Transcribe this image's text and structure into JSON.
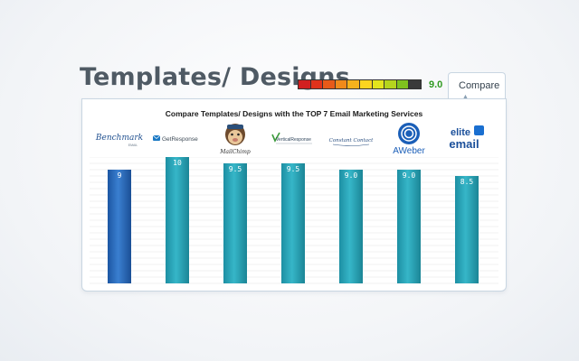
{
  "page": {
    "title": "Templates/ Designs"
  },
  "rating": {
    "score": "9.0",
    "segments": 10,
    "segment_colors": [
      "#d21f1f",
      "#e0321b",
      "#e75a19",
      "#f08a1b",
      "#f6b21c",
      "#fbd51f",
      "#e3e41d",
      "#b5d41d",
      "#7fc21e",
      "#4e9f1c"
    ],
    "filled": 9
  },
  "compare_tab": {
    "label": "Compare",
    "icon": "caret-up-icon"
  },
  "chart_data": {
    "type": "bar",
    "title": "Compare Templates/ Designs with the TOP 7 Email Marketing Services",
    "categories": [
      "Benchmark",
      "GetResponse",
      "MailChimp",
      "VerticalResponse",
      "Constant Contact",
      "AWeber",
      "elite email"
    ],
    "values": [
      9,
      10,
      9.5,
      9.5,
      9.0,
      9.0,
      8.5
    ],
    "value_labels": [
      "9",
      "10",
      "9.5",
      "9.5",
      "9.0",
      "9.0",
      "8.5"
    ],
    "ylim": [
      0,
      10
    ],
    "grid": true,
    "highlight_index": 0,
    "colors": {
      "highlight": "#2a69b8",
      "default": "#2aa3b6",
      "grid": "#e5e5e5"
    }
  },
  "logos": [
    {
      "name": "Benchmark",
      "text": "Benchmark",
      "sub": "EMAIL"
    },
    {
      "name": "GetResponse",
      "text": "GetResponse"
    },
    {
      "name": "MailChimp",
      "text": "MailChimp"
    },
    {
      "name": "VerticalResponse",
      "text": "VerticalResponse"
    },
    {
      "name": "Constant Contact",
      "text": "Constant Contact"
    },
    {
      "name": "AWeber",
      "text": "AWeber"
    },
    {
      "name": "elite email",
      "text_top": "elite",
      "text_bottom": "email"
    }
  ]
}
